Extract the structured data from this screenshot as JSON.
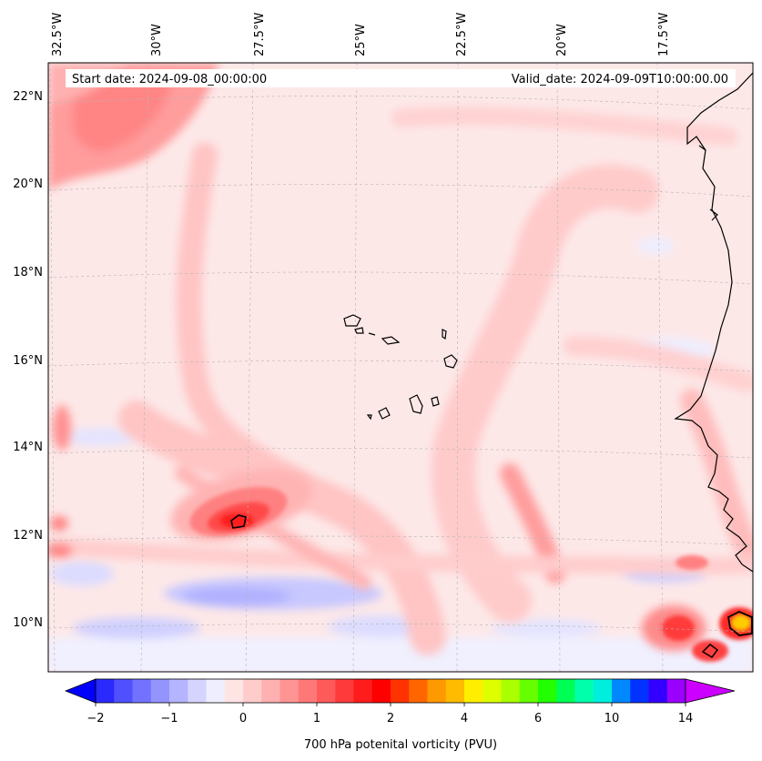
{
  "map": {
    "start_date": "Start date: 2024-09-08_00:00:00",
    "valid_date": "Valid_date: 2024-09-09T10:00:00.00",
    "lon_labels": [
      "32.5°W",
      "30°W",
      "27.5°W",
      "25°W",
      "22.5°W",
      "20°W",
      "17.5°W"
    ],
    "lat_labels": [
      "22°N",
      "20°N",
      "18°N",
      "16°N",
      "14°N",
      "12°N",
      "10°N"
    ],
    "background_color": "#fde8e8",
    "coast_color": "#000000"
  },
  "colorbar": {
    "title": "700 hPa potenital vorticity (PVU)",
    "tick_labels": [
      "−2",
      "−1",
      "0",
      "1",
      "2",
      "4",
      "6",
      "10",
      "14"
    ],
    "colors": [
      "#0000ff",
      "#2a2aff",
      "#5050ff",
      "#7272ff",
      "#9494ff",
      "#b4b4ff",
      "#d4d4ff",
      "#eeeeff",
      "#ffe4e4",
      "#ffcccc",
      "#ffb0b0",
      "#ff9494",
      "#ff7878",
      "#ff5a5a",
      "#ff3a3a",
      "#ff1c1c",
      "#ff0000",
      "#ff3300",
      "#ff6600",
      "#ff9900",
      "#ffbb00",
      "#ffee00",
      "#ddff00",
      "#aaff00",
      "#66ff00",
      "#22ff00",
      "#00ff55",
      "#00ffaa",
      "#00eedd",
      "#0088ff",
      "#0033ff",
      "#3300ff",
      "#9900ff",
      "#cc00ff"
    ]
  }
}
